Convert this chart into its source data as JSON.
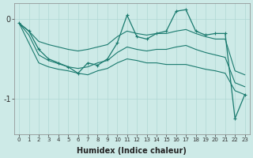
{
  "xlabel": "Humidex (Indice chaleur)",
  "x": [
    0,
    1,
    2,
    3,
    4,
    5,
    6,
    7,
    8,
    9,
    10,
    11,
    12,
    13,
    14,
    15,
    16,
    17,
    18,
    19,
    20,
    21,
    22,
    23
  ],
  "line_main": [
    -0.05,
    -0.15,
    -0.38,
    -0.5,
    -0.55,
    -0.6,
    -0.68,
    -0.55,
    -0.58,
    -0.5,
    -0.3,
    0.05,
    -0.22,
    -0.25,
    -0.18,
    -0.15,
    0.1,
    0.12,
    -0.15,
    -0.2,
    -0.18,
    -0.18,
    -1.25,
    -0.95
  ],
  "line_upper": [
    -0.05,
    -0.15,
    -0.28,
    -0.32,
    -0.35,
    -0.38,
    -0.4,
    -0.38,
    -0.35,
    -0.32,
    -0.22,
    -0.15,
    -0.18,
    -0.2,
    -0.18,
    -0.18,
    -0.15,
    -0.13,
    -0.18,
    -0.22,
    -0.25,
    -0.25,
    -0.65,
    -0.7
  ],
  "line_mid": [
    -0.05,
    -0.2,
    -0.45,
    -0.52,
    -0.56,
    -0.6,
    -0.62,
    -0.6,
    -0.55,
    -0.52,
    -0.42,
    -0.35,
    -0.38,
    -0.4,
    -0.38,
    -0.38,
    -0.35,
    -0.33,
    -0.38,
    -0.42,
    -0.45,
    -0.48,
    -0.8,
    -0.85
  ],
  "line_lower": [
    -0.05,
    -0.3,
    -0.55,
    -0.6,
    -0.63,
    -0.65,
    -0.68,
    -0.7,
    -0.65,
    -0.62,
    -0.55,
    -0.5,
    -0.52,
    -0.55,
    -0.55,
    -0.57,
    -0.57,
    -0.57,
    -0.6,
    -0.63,
    -0.65,
    -0.68,
    -0.9,
    -0.95
  ],
  "line_color": "#1a7a6e",
  "bg_color": "#cdeae7",
  "grid_color": "#b0d8d4",
  "ylim": [
    -1.45,
    0.2
  ],
  "xlim": [
    -0.5,
    23.5
  ],
  "yticks": [
    0,
    -1
  ],
  "ytick_labels": [
    "0",
    "-1"
  ],
  "xticks": [
    0,
    1,
    2,
    3,
    4,
    5,
    6,
    7,
    8,
    9,
    10,
    11,
    12,
    13,
    14,
    15,
    16,
    17,
    18,
    19,
    20,
    21,
    22,
    23
  ]
}
